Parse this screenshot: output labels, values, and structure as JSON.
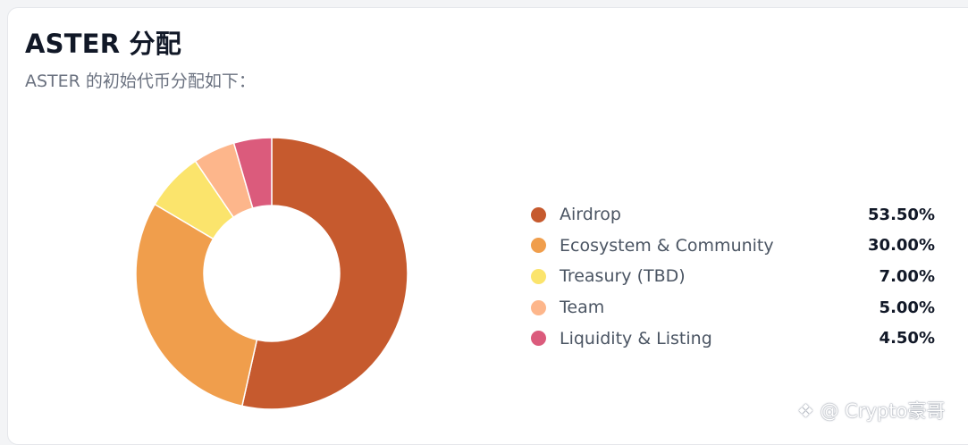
{
  "chart_data": {
    "type": "pie",
    "title": "ASTER 分配",
    "subtitle": "ASTER 的初始代币分配如下：",
    "legend_position": "right",
    "slices": [
      {
        "label": "Airdrop",
        "value": 53.5,
        "display": "53.50%",
        "color": "#c65a2e"
      },
      {
        "label": "Ecosystem & Community",
        "value": 30.0,
        "display": "30.00%",
        "color": "#f09e4c"
      },
      {
        "label": "Treasury (TBD)",
        "value": 7.0,
        "display": "7.00%",
        "color": "#fbe46c"
      },
      {
        "label": "Team",
        "value": 5.0,
        "display": "5.00%",
        "color": "#fdb68b"
      },
      {
        "label": "Liquidity & Listing",
        "value": 4.5,
        "display": "4.50%",
        "color": "#db5b7c"
      }
    ]
  },
  "watermark": "❖ @ Crypto豪哥"
}
